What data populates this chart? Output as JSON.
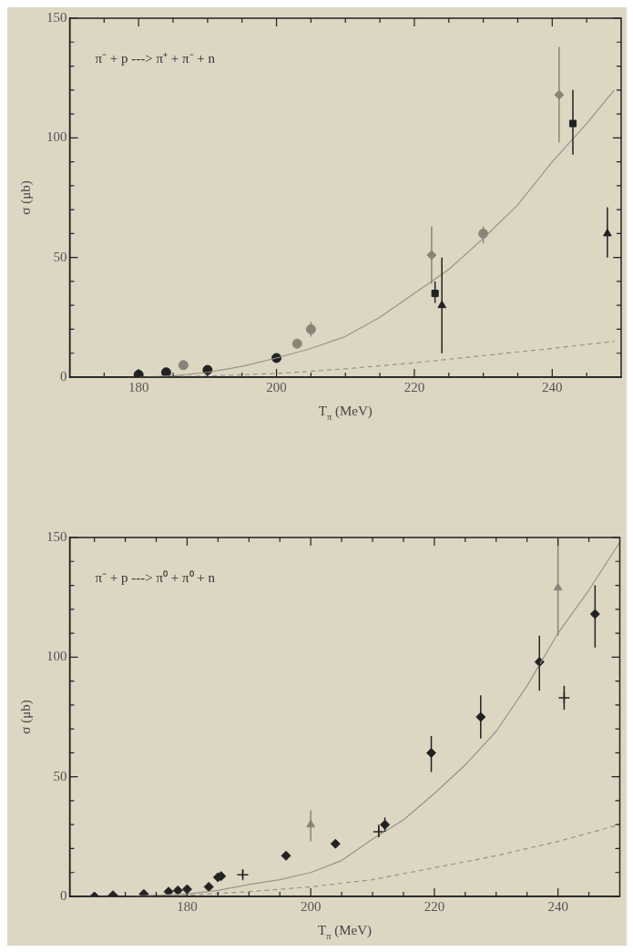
{
  "chart_data": [
    {
      "type": "scatter",
      "xlabel": "T$_{π}$ (MeV)",
      "ylabel": "σ (μb)",
      "annotations": [
        "π⁻ + p ---> π⁺ + π⁻ + n"
      ],
      "grid": false,
      "legend": false,
      "xlim": [
        170,
        250
      ],
      "ylim": [
        0,
        150
      ],
      "xticks": [
        {
          "value": 175,
          "label": null
        },
        180,
        {
          "value": 185,
          "label": null
        },
        {
          "value": 190,
          "label": null
        },
        {
          "value": 195,
          "label": null
        },
        200,
        {
          "value": 205,
          "label": null
        },
        {
          "value": 210,
          "label": null
        },
        {
          "value": 215,
          "label": null
        },
        220,
        {
          "value": 225,
          "label": null
        },
        {
          "value": 230,
          "label": null
        },
        {
          "value": 235,
          "label": null
        },
        240,
        {
          "value": 245,
          "label": null
        }
      ],
      "yticks": [
        0,
        {
          "value": 10,
          "label": null
        },
        {
          "value": 20,
          "label": null
        },
        {
          "value": 30,
          "label": null
        },
        {
          "value": 40,
          "label": null
        },
        50,
        {
          "value": 60,
          "label": null
        },
        {
          "value": 70,
          "label": null
        },
        {
          "value": 80,
          "label": null
        },
        {
          "value": 90,
          "label": null
        },
        100,
        {
          "value": 110,
          "label": null
        },
        {
          "value": 120,
          "label": null
        },
        {
          "value": 130,
          "label": null
        },
        {
          "value": 140,
          "label": null
        },
        150
      ],
      "series": [
        {
          "type": "line",
          "color": "#9a9488",
          "line_style": "solid",
          "marker": "none",
          "x": [
            180,
            185,
            190,
            195,
            200,
            205,
            210,
            215,
            220,
            225,
            230,
            235,
            240,
            245,
            249
          ],
          "values": [
            0,
            0.5,
            2,
            4.5,
            8,
            12,
            17,
            25,
            35,
            45,
            58,
            72,
            90,
            106,
            120
          ]
        },
        {
          "type": "line",
          "color": "#9a9488",
          "line_style": "dashed",
          "marker": "none",
          "x": [
            180,
            190,
            200,
            210,
            220,
            230,
            240,
            249
          ],
          "values": [
            0,
            0.5,
            1.5,
            3.5,
            6,
            9,
            12,
            15
          ]
        },
        {
          "type": "scatter",
          "color": "#222222",
          "marker": "circle",
          "x": [
            180,
            184,
            190,
            200
          ],
          "values": [
            1,
            2,
            3,
            8
          ]
        },
        {
          "type": "scatter",
          "color": "#8a8478",
          "marker": "circle",
          "x": [
            186.5,
            203,
            205,
            230
          ],
          "values": [
            5,
            14,
            20,
            60
          ],
          "errors": [
            [
              4,
              7
            ],
            [
              12,
              16
            ],
            [
              17,
              23
            ],
            [
              56,
              63
            ]
          ]
        },
        {
          "type": "scatter",
          "color": "#8a8478",
          "marker": "diamond",
          "x": [
            222.5,
            241
          ],
          "values": [
            51,
            118
          ],
          "errors": [
            [
              39,
              63
            ],
            [
              98,
              138
            ]
          ]
        },
        {
          "type": "scatter",
          "color": "#222222",
          "marker": "square",
          "x": [
            223,
            243
          ],
          "values": [
            35,
            106
          ],
          "errors": [
            [
              31,
              40
            ],
            [
              93,
              120
            ]
          ]
        },
        {
          "type": "scatter",
          "color": "#222222",
          "marker": "triangle",
          "x": [
            224,
            248
          ],
          "values": [
            30,
            60
          ],
          "errors": [
            [
              10,
              50
            ],
            [
              50,
              71
            ]
          ]
        }
      ]
    },
    {
      "type": "scatter",
      "xlabel": "T$_{π}$ (MeV)",
      "ylabel": "σ (μb)",
      "annotations": [
        "π⁻ + p ---> π⁰ + π⁰ + n"
      ],
      "grid": false,
      "legend": false,
      "xlim": [
        161,
        250
      ],
      "ylim": [
        0,
        150
      ],
      "xticks": [
        {
          "value": 165,
          "label": null
        },
        {
          "value": 170,
          "label": null
        },
        {
          "value": 175,
          "label": null
        },
        180,
        {
          "value": 185,
          "label": null
        },
        {
          "value": 190,
          "label": null
        },
        {
          "value": 195,
          "label": null
        },
        200,
        {
          "value": 205,
          "label": null
        },
        {
          "value": 210,
          "label": null
        },
        {
          "value": 215,
          "label": null
        },
        220,
        {
          "value": 225,
          "label": null
        },
        {
          "value": 230,
          "label": null
        },
        {
          "value": 235,
          "label": null
        },
        240,
        {
          "value": 245,
          "label": null
        }
      ],
      "yticks": [
        0,
        {
          "value": 10,
          "label": null
        },
        {
          "value": 20,
          "label": null
        },
        {
          "value": 30,
          "label": null
        },
        {
          "value": 40,
          "label": null
        },
        50,
        {
          "value": 60,
          "label": null
        },
        {
          "value": 70,
          "label": null
        },
        {
          "value": 80,
          "label": null
        },
        {
          "value": 90,
          "label": null
        },
        100,
        {
          "value": 110,
          "label": null
        },
        {
          "value": 120,
          "label": null
        },
        {
          "value": 130,
          "label": null
        },
        {
          "value": 140,
          "label": null
        },
        150
      ],
      "series": [
        {
          "type": "line",
          "color": "#9a9488",
          "line_style": "solid",
          "marker": "none",
          "x": [
            170,
            180,
            185,
            190,
            195,
            200,
            205,
            210,
            215,
            220,
            225,
            230,
            235,
            240,
            245,
            250
          ],
          "values": [
            0,
            1,
            2.5,
            5,
            7,
            10,
            15,
            24,
            32,
            43,
            55,
            69,
            88,
            110,
            128,
            148
          ]
        },
        {
          "type": "line",
          "color": "#9a9488",
          "line_style": "dashed",
          "marker": "none",
          "x": [
            170,
            180,
            190,
            200,
            210,
            220,
            230,
            240,
            250
          ],
          "values": [
            0,
            0.5,
            2,
            4,
            7,
            12,
            17,
            23,
            30
          ]
        },
        {
          "type": "scatter",
          "color": "#222222",
          "marker": "diamond",
          "x": [
            165,
            168,
            173,
            177,
            178.5,
            180,
            183.5,
            185,
            185.5,
            196,
            204,
            212,
            219.5,
            227.5,
            237,
            246
          ],
          "values": [
            0,
            0.5,
            1,
            2,
            2.5,
            3,
            4,
            8,
            8.5,
            17,
            22,
            30,
            60,
            75,
            98,
            118
          ],
          "errors": [
            null,
            null,
            null,
            null,
            null,
            null,
            null,
            null,
            null,
            null,
            null,
            [
              27,
              33
            ],
            [
              52,
              67
            ],
            [
              66,
              84
            ],
            [
              86,
              109
            ],
            [
              104,
              130
            ]
          ]
        },
        {
          "type": "scatter",
          "color": "#222222",
          "marker": "cross",
          "x": [
            189,
            211,
            241
          ],
          "values": [
            9,
            27,
            83
          ],
          "errors": [
            [
              8,
              11
            ],
            [
              25,
              30
            ],
            [
              78,
              88
            ]
          ]
        },
        {
          "type": "scatter",
          "color": "#8a8478",
          "marker": "triangle",
          "x": [
            200,
            240
          ],
          "values": [
            30,
            129
          ],
          "errors": [
            [
              23,
              36
            ],
            [
              109,
              150
            ]
          ]
        }
      ]
    }
  ]
}
